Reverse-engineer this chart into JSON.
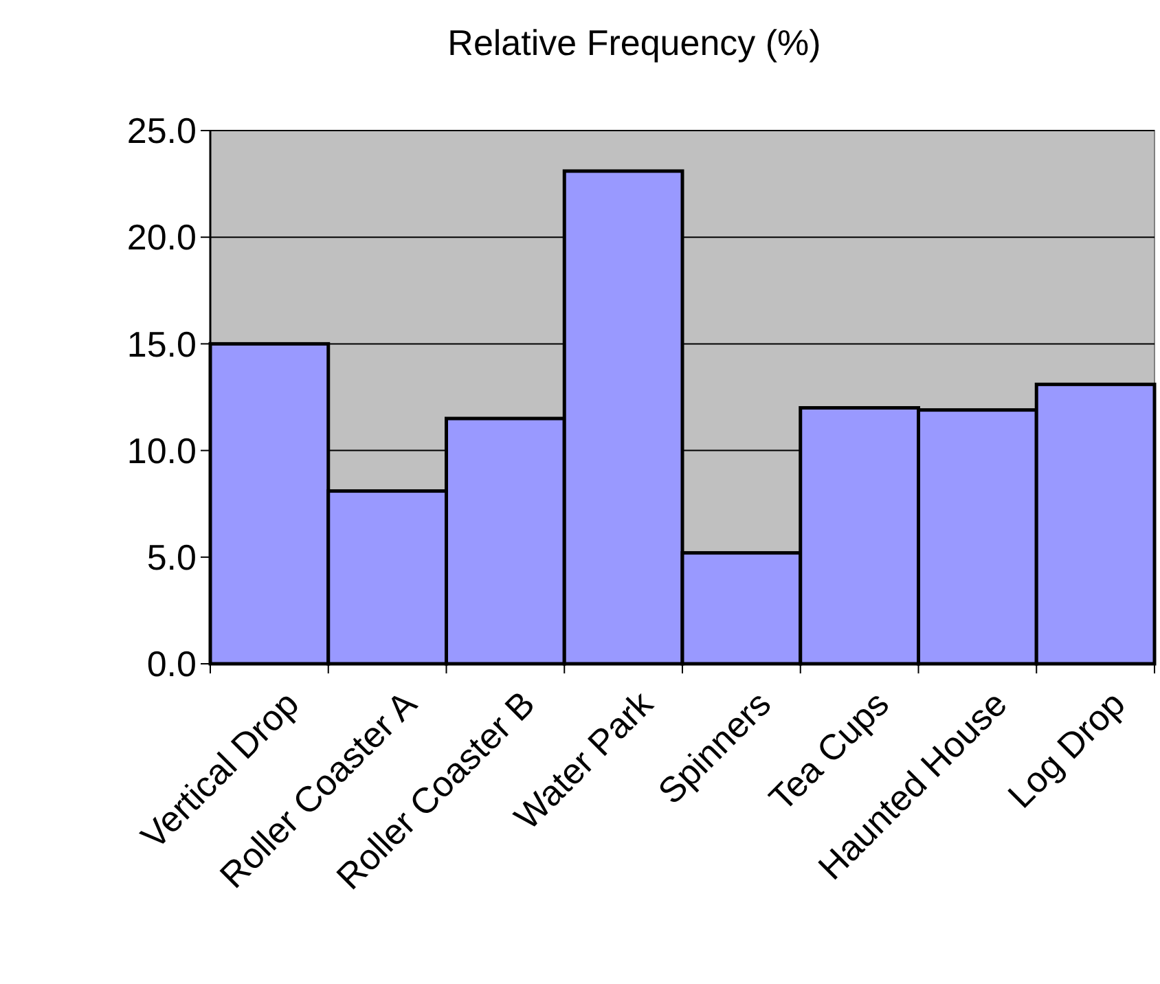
{
  "chart_data": {
    "type": "bar",
    "title": "Relative Frequency (%)",
    "categories": [
      "Vertical Drop",
      "Roller Coaster A",
      "Roller Coaster B",
      "Water Park",
      "Spinners",
      "Tea Cups",
      "Haunted House",
      "Log Drop"
    ],
    "values": [
      15.0,
      8.1,
      11.5,
      23.1,
      5.2,
      12.0,
      11.9,
      13.1
    ],
    "color": "#9999ff",
    "ylim": [
      0,
      25
    ],
    "yticks": [
      {
        "value": 0,
        "label": "0.0"
      },
      {
        "value": 5,
        "label": "5.0"
      },
      {
        "value": 10,
        "label": "10.0"
      },
      {
        "value": 15,
        "label": "15.0"
      },
      {
        "value": 20,
        "label": "20.0"
      },
      {
        "value": 25,
        "label": "25.0"
      }
    ],
    "grid": "y"
  }
}
